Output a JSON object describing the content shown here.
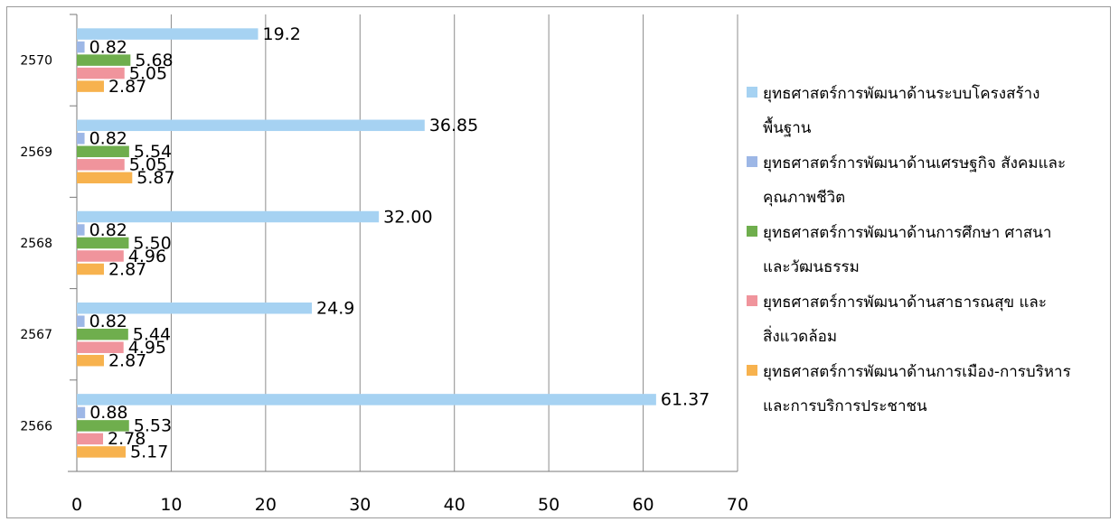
{
  "chart_data": {
    "type": "bar",
    "orientation": "horizontal",
    "categories": [
      "2566",
      "2567",
      "2568",
      "2569",
      "2570"
    ],
    "series": [
      {
        "name": "ยุทธศาสตร์การพัฒนาด้านระบบโครงสร้างพื้นฐาน",
        "name_lines": [
          "ยุทธศาสตร์การพัฒนาด้านระบบโครงสร้าง",
          "พื้นฐาน"
        ],
        "color": "#a6d2f2",
        "values": [
          61.37,
          24.9,
          32.0,
          36.85,
          19.2
        ],
        "labels": [
          "61.37",
          "24.9",
          "32.00",
          "36.85",
          "19.2"
        ]
      },
      {
        "name": "ยุทธศาสตร์การพัฒนาด้านเศรษฐกิจ สังคมและคุณภาพชีวิต",
        "name_lines": [
          "ยุทธศาสตร์การพัฒนาด้านเศรษฐกิจ สังคมและ",
          "คุณภาพชีวิต"
        ],
        "color": "#9db7e6",
        "values": [
          0.88,
          0.82,
          0.82,
          0.82,
          0.82
        ],
        "labels": [
          "0.88",
          "0.82",
          "0.82",
          "0.82",
          "0.82"
        ]
      },
      {
        "name": "ยุทธศาสตร์การพัฒนาด้านการศึกษา ศาสนาและวัฒนธรรม",
        "name_lines": [
          "ยุทธศาสตร์การพัฒนาด้านการศึกษา ศาสนา",
          "และวัฒนธรรม"
        ],
        "color": "#6fae4d",
        "values": [
          5.53,
          5.44,
          5.5,
          5.54,
          5.68
        ],
        "labels": [
          "5.53",
          "5.44",
          "5.50",
          "5.54",
          "5.68"
        ]
      },
      {
        "name": "ยุทธศาสตร์การพัฒนาด้านสาธารณสุข และสิ่งแวดล้อม",
        "name_lines": [
          "ยุทธศาสตร์การพัฒนาด้านสาธารณสุข และ",
          "สิ่งแวดล้อม"
        ],
        "color": "#f0949c",
        "values": [
          2.78,
          4.95,
          4.96,
          5.05,
          5.05
        ],
        "labels": [
          "2.78",
          "4.95",
          "4.96",
          "5.05",
          "5.05"
        ]
      },
      {
        "name": "ยุทธศาสตร์การพัฒนาด้านการเมือง-การบริหารและการบริการประชาชน",
        "name_lines": [
          "ยุทธศาสตร์การพัฒนาด้านการเมือง-การบริหาร",
          "และการบริการประชาชน"
        ],
        "color": "#f7b24e",
        "values": [
          5.17,
          2.87,
          2.87,
          5.87,
          2.87
        ],
        "labels": [
          "5.17",
          "2.87",
          "2.87",
          "5.87",
          "2.87"
        ]
      }
    ],
    "xlim": [
      0,
      70
    ],
    "xticks": [
      "0",
      "10",
      "20",
      "30",
      "40",
      "50",
      "60",
      "70"
    ],
    "grid": true,
    "legend_position": "right",
    "title": "",
    "xlabel": "",
    "ylabel": ""
  }
}
